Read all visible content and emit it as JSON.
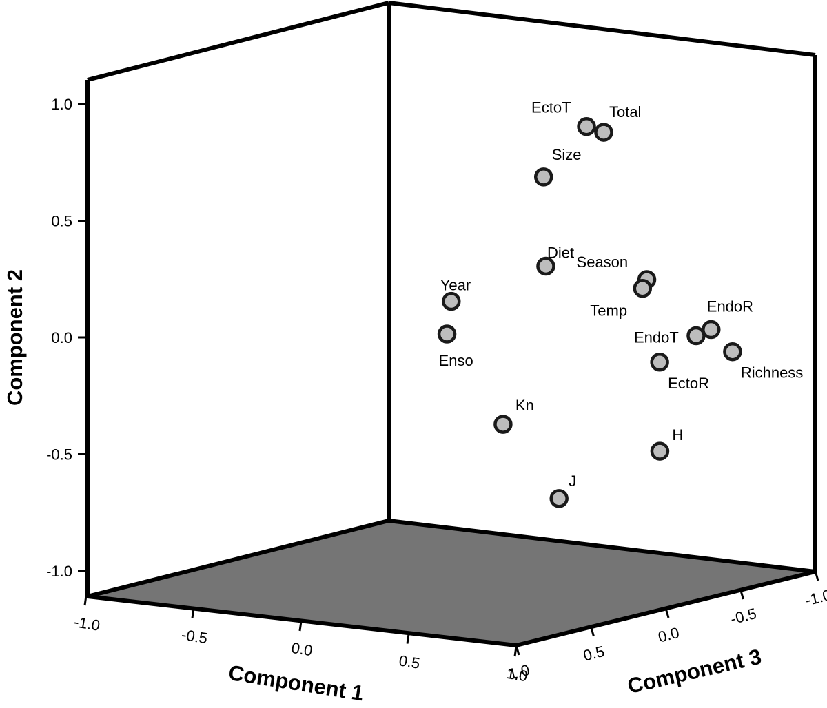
{
  "chart_data": {
    "type": "scatter",
    "projection": "3d",
    "title": "",
    "xlabel": "Component 1",
    "ylabel": "Component 2",
    "zlabel": "Component 3",
    "xlim": [
      -1.0,
      1.0
    ],
    "ylim": [
      -1.0,
      1.0
    ],
    "zlim": [
      -1.0,
      1.0
    ],
    "x_ticks": [
      "-1.0",
      "-0.5",
      "0.0",
      "0.5",
      "1.0"
    ],
    "y_ticks": [
      "1.0",
      "0.5",
      "0.0",
      "-0.5",
      "-1.0"
    ],
    "z_ticks": [
      "1.0",
      "0.5",
      "0.0",
      "-0.5",
      "-1.0"
    ],
    "grid": false,
    "colors": {
      "marker_fill": "#bdbdbd",
      "marker_edge": "#1a1a1a",
      "floor": "#757575",
      "frame": "#000000"
    },
    "points": [
      {
        "label": "EctoT",
        "x": 0.38,
        "y": 0.92,
        "z": -0.25
      },
      {
        "label": "Total",
        "x": 0.44,
        "y": 0.9,
        "z": -0.27
      },
      {
        "label": "Size",
        "x": 0.22,
        "y": 0.69,
        "z": -0.21
      },
      {
        "label": "Diet",
        "x": 0.28,
        "y": 0.32,
        "z": -0.16
      },
      {
        "label": "Season",
        "x": 0.72,
        "y": 0.31,
        "z": -0.19
      },
      {
        "label": "Temp",
        "x": 0.7,
        "y": 0.27,
        "z": -0.19
      },
      {
        "label": "EndoR",
        "x": 0.84,
        "y": 0.09,
        "z": -0.37
      },
      {
        "label": "EndoT",
        "x": 0.79,
        "y": 0.06,
        "z": -0.35
      },
      {
        "label": "Richness",
        "x": 0.91,
        "y": 0.0,
        "z": -0.4
      },
      {
        "label": "EctoR",
        "x": 0.72,
        "y": -0.05,
        "z": -0.25
      },
      {
        "label": "Year",
        "x": -0.11,
        "y": 0.13,
        "z": -0.11
      },
      {
        "label": "Enso",
        "x": -0.12,
        "y": -0.01,
        "z": -0.1
      },
      {
        "label": "Kn",
        "x": 0.26,
        "y": -0.34,
        "z": 0.02
      },
      {
        "label": "H",
        "x": 0.86,
        "y": -0.4,
        "z": -0.11
      },
      {
        "label": "J",
        "x": 0.6,
        "y": -0.61,
        "z": 0.1
      }
    ]
  }
}
